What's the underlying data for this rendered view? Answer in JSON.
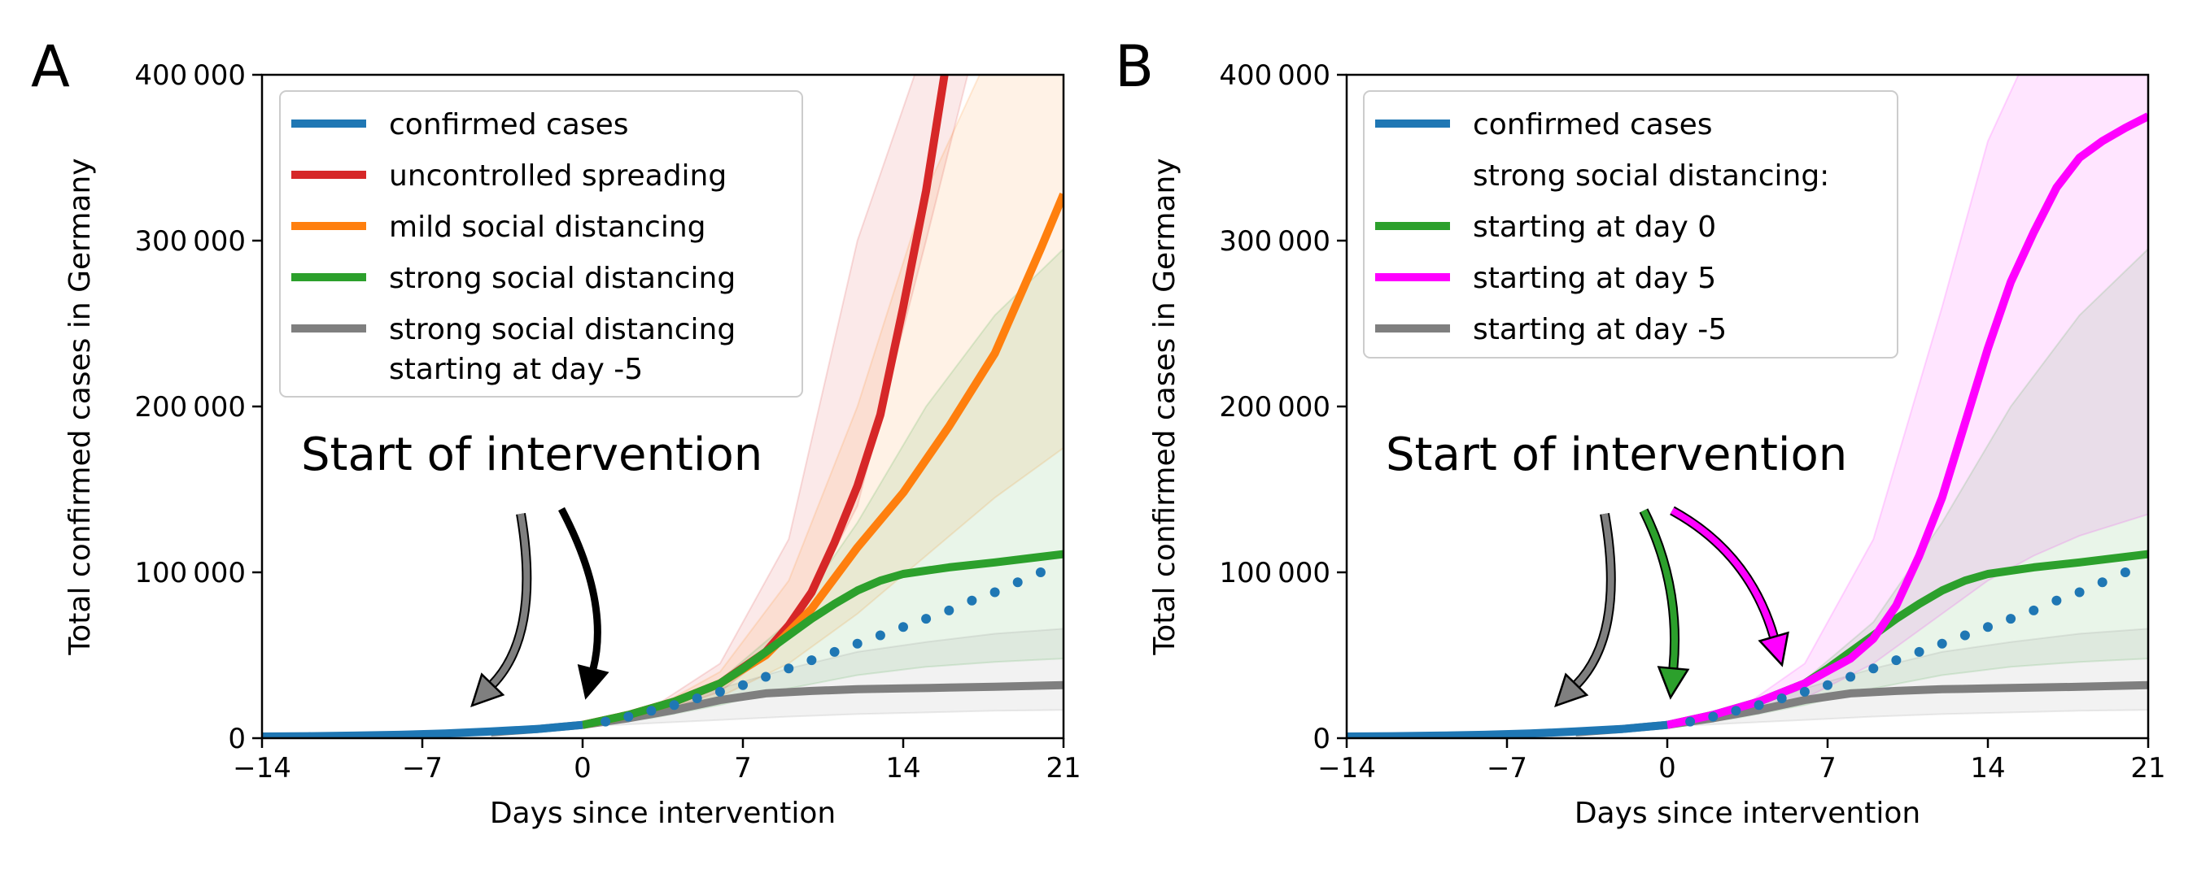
{
  "chart_data": [
    {
      "type": "line",
      "panel": "A",
      "xlabel": "Days since intervention",
      "ylabel": "Total confirmed cases in Germany",
      "xlim": [
        -14,
        21
      ],
      "ylim": [
        0,
        400000
      ],
      "xticks": [
        -14,
        -7,
        0,
        7,
        14,
        21
      ],
      "xtick_labels": [
        "−14",
        "−7",
        "0",
        "7",
        "14",
        "21"
      ],
      "yticks": [
        0,
        100000,
        200000,
        300000,
        400000
      ],
      "ytick_labels": [
        "0",
        "100 000",
        "200 000",
        "300 000",
        "400 000"
      ],
      "annotation": "Start of intervention",
      "legend": [
        {
          "label": "confirmed cases",
          "color": "#1f77b4"
        },
        {
          "label": "uncontrolled spreading",
          "color": "#d62728"
        },
        {
          "label": "mild social distancing",
          "color": "#ff7f0e"
        },
        {
          "label": "strong social distancing",
          "color": "#2ca02c"
        },
        {
          "label": "strong social distancing",
          "label2": "starting at day -5",
          "color": "#7f7f7f"
        }
      ],
      "arrows": [
        {
          "target_day": -5,
          "color": "#7f7f7f"
        },
        {
          "target_day": 0,
          "color": "#000000"
        }
      ],
      "bands": [
        {
          "name": "uncontrolled spreading",
          "color": "#d62728",
          "x": [
            0,
            3,
            6,
            9,
            12,
            15,
            17
          ],
          "lower": [
            8000,
            14000,
            28000,
            60000,
            140000,
            300000,
            410000
          ],
          "upper": [
            8000,
            18000,
            45000,
            120000,
            300000,
            420000,
            420000
          ]
        },
        {
          "name": "mild social distancing",
          "color": "#ff7f0e",
          "x": [
            0,
            3,
            6,
            9,
            12,
            15,
            18,
            21
          ],
          "lower": [
            8000,
            13000,
            25000,
            45000,
            75000,
            110000,
            145000,
            175000
          ],
          "upper": [
            8000,
            17000,
            40000,
            95000,
            200000,
            330000,
            420000,
            420000
          ]
        },
        {
          "name": "strong social distancing",
          "color": "#2ca02c",
          "x": [
            0,
            3,
            6,
            9,
            12,
            15,
            18,
            21
          ],
          "lower": [
            8000,
            12000,
            20000,
            30000,
            38000,
            43000,
            46000,
            48000
          ],
          "upper": [
            8000,
            16000,
            35000,
            70000,
            130000,
            200000,
            255000,
            295000
          ]
        },
        {
          "name": "strong social distancing starting at day -5",
          "color": "#7f7f7f",
          "x": [
            -3,
            0,
            3,
            6,
            9,
            12,
            15,
            18,
            21
          ],
          "lower": [
            5000,
            7000,
            9000,
            11000,
            13000,
            14500,
            15500,
            16500,
            17000
          ],
          "upper": [
            5000,
            9000,
            17000,
            30000,
            42000,
            52000,
            58000,
            63000,
            66000
          ]
        }
      ],
      "series": [
        {
          "name": "confirmed cases",
          "color": "#1f77b4",
          "style": "solid",
          "x": [
            -14,
            -12,
            -10,
            -8,
            -6,
            -4,
            -2,
            0
          ],
          "y": [
            1000,
            1200,
            1500,
            2000,
            2800,
            4000,
            5500,
            8000
          ]
        },
        {
          "name": "confirmed cases",
          "color": "#1f77b4",
          "style": "dotted",
          "x": [
            1,
            2,
            3,
            4,
            5,
            6,
            7,
            8,
            9,
            10,
            11,
            12,
            13,
            14,
            15,
            16,
            17,
            18,
            19,
            20
          ],
          "y": [
            10000,
            13000,
            16500,
            20000,
            24000,
            28000,
            32000,
            37000,
            42000,
            47000,
            52000,
            57000,
            62000,
            67000,
            72000,
            77000,
            83000,
            88000,
            94000,
            100000
          ]
        },
        {
          "name": "uncontrolled spreading",
          "color": "#d62728",
          "style": "solid",
          "x": [
            0,
            2,
            4,
            6,
            8,
            9,
            10,
            11,
            12,
            13,
            14,
            15,
            15.8
          ],
          "y": [
            8000,
            14000,
            22000,
            33000,
            52000,
            68000,
            88000,
            118000,
            152000,
            195000,
            260000,
            330000,
            400000
          ]
        },
        {
          "name": "mild social distancing",
          "color": "#ff7f0e",
          "style": "solid",
          "x": [
            0,
            2,
            4,
            6,
            8,
            10,
            12,
            14,
            16,
            18,
            20,
            21
          ],
          "y": [
            8000,
            14000,
            22000,
            33000,
            50000,
            78000,
            115000,
            148000,
            188000,
            232000,
            295000,
            328000
          ]
        },
        {
          "name": "strong social distancing",
          "color": "#2ca02c",
          "style": "solid",
          "x": [
            0,
            2,
            4,
            6,
            7,
            8,
            9,
            10,
            11,
            12,
            13,
            14,
            16,
            18,
            21
          ],
          "y": [
            8000,
            14000,
            22000,
            33000,
            42000,
            52000,
            62000,
            72000,
            81000,
            89000,
            95000,
            99000,
            103000,
            106000,
            111000
          ]
        },
        {
          "name": "strong social distancing starting at day -5",
          "color": "#7f7f7f",
          "style": "solid",
          "x": [
            -4,
            -2,
            0,
            2,
            4,
            6,
            8,
            10,
            12,
            14,
            16,
            18,
            21
          ],
          "y": [
            3500,
            5500,
            8000,
            12000,
            17000,
            23000,
            27000,
            28500,
            29500,
            30000,
            30500,
            31000,
            32000
          ]
        }
      ]
    },
    {
      "type": "line",
      "panel": "B",
      "xlabel": "Days since intervention",
      "ylabel": "Total confirmed cases in Germany",
      "xlim": [
        -14,
        21
      ],
      "ylim": [
        0,
        400000
      ],
      "xticks": [
        -14,
        -7,
        0,
        7,
        14,
        21
      ],
      "xtick_labels": [
        "−14",
        "−7",
        "0",
        "7",
        "14",
        "21"
      ],
      "yticks": [
        0,
        100000,
        200000,
        300000,
        400000
      ],
      "ytick_labels": [
        "0",
        "100 000",
        "200 000",
        "300 000",
        "400 000"
      ],
      "annotation": "Start of intervention",
      "legend": [
        {
          "label": "confirmed cases",
          "color": "#1f77b4"
        },
        {
          "label": "strong social distancing:",
          "color": null
        },
        {
          "label": "  starting at day 0",
          "color": "#2ca02c"
        },
        {
          "label": "  starting at day 5",
          "color": "#ff00ff"
        },
        {
          "label": "  starting at day -5",
          "color": "#7f7f7f"
        }
      ],
      "arrows": [
        {
          "target_day": -5,
          "color": "#7f7f7f"
        },
        {
          "target_day": 0,
          "color": "#2ca02c"
        },
        {
          "target_day": 5,
          "color": "#ff00ff"
        }
      ],
      "bands": [
        {
          "name": "starting at day 5",
          "color": "#ff00ff",
          "x": [
            0,
            3,
            6,
            9,
            12,
            14,
            16,
            18,
            21
          ],
          "lower": [
            8000,
            13000,
            24000,
            45000,
            75000,
            95000,
            110000,
            122000,
            135000
          ],
          "upper": [
            8000,
            16000,
            45000,
            120000,
            260000,
            360000,
            420000,
            420000,
            420000
          ]
        },
        {
          "name": "starting at day 0",
          "color": "#2ca02c",
          "x": [
            0,
            3,
            6,
            9,
            12,
            15,
            18,
            21
          ],
          "lower": [
            8000,
            12000,
            20000,
            30000,
            38000,
            43000,
            46000,
            48000
          ],
          "upper": [
            8000,
            16000,
            35000,
            70000,
            130000,
            200000,
            255000,
            295000
          ]
        },
        {
          "name": "starting at day -5",
          "color": "#7f7f7f",
          "x": [
            -3,
            0,
            3,
            6,
            9,
            12,
            15,
            18,
            21
          ],
          "lower": [
            5000,
            7000,
            9000,
            11000,
            13000,
            14500,
            15500,
            16500,
            17000
          ],
          "upper": [
            5000,
            9000,
            17000,
            30000,
            42000,
            52000,
            58000,
            63000,
            66000
          ]
        }
      ],
      "series": [
        {
          "name": "confirmed cases",
          "color": "#1f77b4",
          "style": "solid",
          "x": [
            -14,
            -12,
            -10,
            -8,
            -6,
            -4,
            -2,
            0
          ],
          "y": [
            1000,
            1200,
            1500,
            2000,
            2800,
            4000,
            5500,
            8000
          ]
        },
        {
          "name": "confirmed cases",
          "color": "#1f77b4",
          "style": "dotted",
          "x": [
            1,
            2,
            3,
            4,
            5,
            6,
            7,
            8,
            9,
            10,
            11,
            12,
            13,
            14,
            15,
            16,
            17,
            18,
            19,
            20
          ],
          "y": [
            10000,
            13000,
            16500,
            20000,
            24000,
            28000,
            32000,
            37000,
            42000,
            47000,
            52000,
            57000,
            62000,
            67000,
            72000,
            77000,
            83000,
            88000,
            94000,
            100000
          ]
        },
        {
          "name": "starting at day 0",
          "color": "#2ca02c",
          "style": "solid",
          "x": [
            0,
            2,
            4,
            6,
            7,
            8,
            9,
            10,
            11,
            12,
            13,
            14,
            16,
            18,
            21
          ],
          "y": [
            8000,
            14000,
            22000,
            33000,
            42000,
            52000,
            62000,
            72000,
            81000,
            89000,
            95000,
            99000,
            103000,
            106000,
            111000
          ]
        },
        {
          "name": "starting at day 5",
          "color": "#ff00ff",
          "style": "solid",
          "x": [
            0,
            2,
            4,
            6,
            8,
            9,
            10,
            11,
            12,
            13,
            14,
            15,
            16,
            17,
            18,
            19,
            20,
            21
          ],
          "y": [
            8000,
            14000,
            22000,
            33000,
            48000,
            60000,
            80000,
            110000,
            145000,
            190000,
            235000,
            275000,
            305000,
            332000,
            350000,
            360000,
            368000,
            375000
          ]
        },
        {
          "name": "starting at day -5",
          "color": "#7f7f7f",
          "style": "solid",
          "x": [
            -4,
            -2,
            0,
            2,
            4,
            6,
            8,
            10,
            12,
            14,
            16,
            18,
            21
          ],
          "y": [
            3500,
            5500,
            8000,
            12000,
            17000,
            23000,
            27000,
            28500,
            29500,
            30000,
            30500,
            31000,
            32000
          ]
        }
      ]
    }
  ],
  "panel_labels": [
    "A",
    "B"
  ]
}
